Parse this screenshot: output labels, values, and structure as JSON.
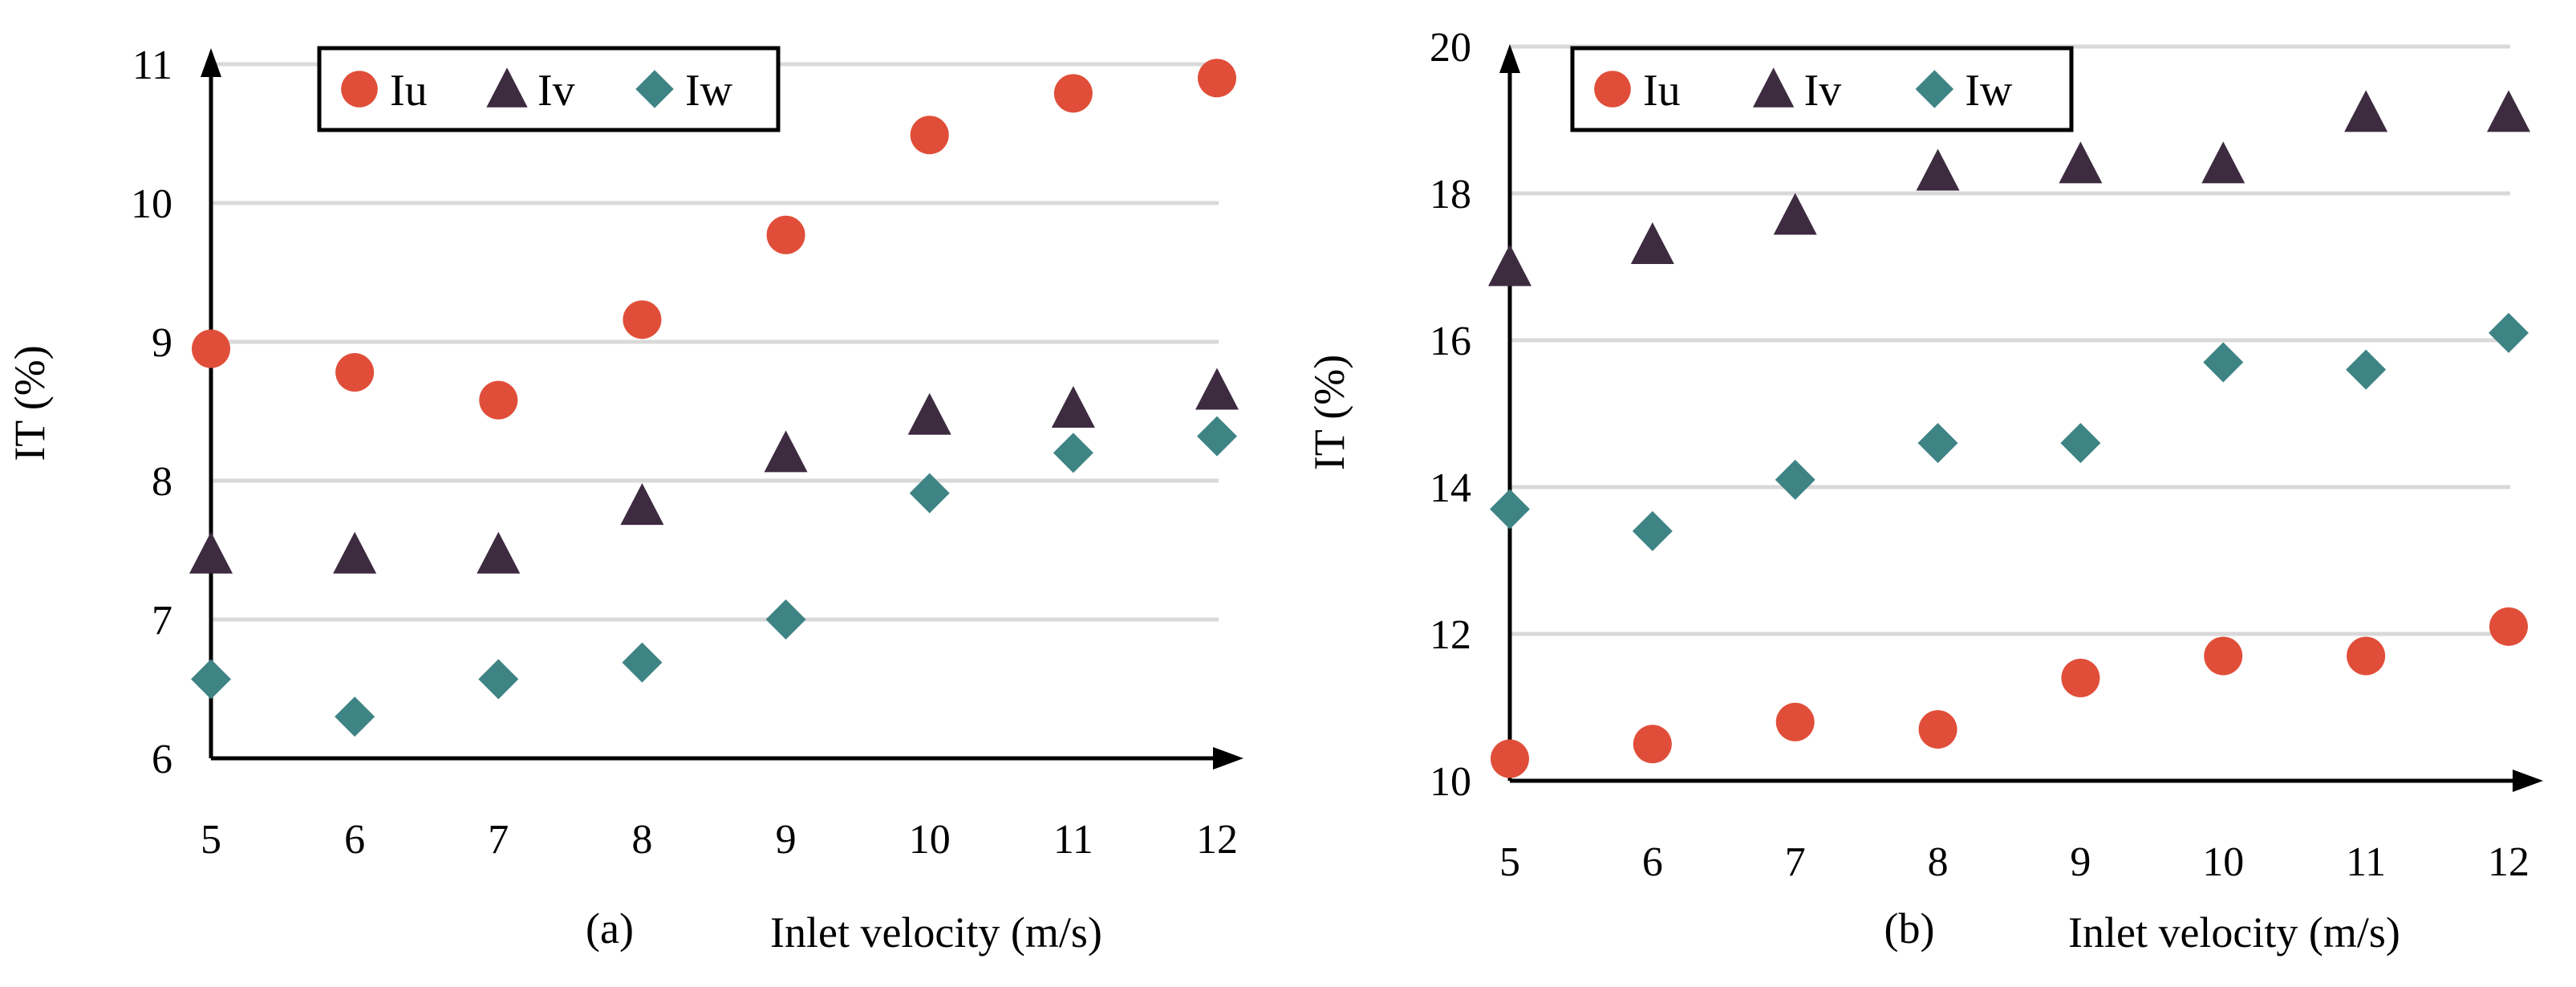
{
  "colors": {
    "Iu": "#e04e39",
    "Iv": "#3d2b40",
    "Iw": "#3f8485"
  },
  "chart_data": [
    {
      "type": "scatter",
      "panel_label": "(a)",
      "xlabel": "Inlet velocity (m/s)",
      "ylabel": "IT (%)",
      "x": [
        5,
        6,
        7,
        8,
        9,
        10,
        11,
        12
      ],
      "xlim": [
        5,
        12
      ],
      "ylim": [
        6,
        11
      ],
      "yticks": [
        6,
        7,
        8,
        9,
        10,
        11
      ],
      "grid": true,
      "legend_position": "top-left",
      "series": [
        {
          "name": "Iu",
          "marker": "circle",
          "values": [
            8.95,
            8.78,
            8.58,
            9.16,
            9.77,
            10.49,
            10.79,
            10.9
          ]
        },
        {
          "name": "Iv",
          "marker": "triangle",
          "values": [
            7.47,
            7.47,
            7.47,
            7.82,
            8.2,
            8.47,
            8.52,
            8.65
          ]
        },
        {
          "name": "Iw",
          "marker": "diamond",
          "values": [
            6.57,
            6.3,
            6.57,
            6.69,
            7.0,
            7.91,
            8.2,
            8.32
          ]
        }
      ]
    },
    {
      "type": "scatter",
      "panel_label": "(b)",
      "xlabel": "Inlet velocity (m/s)",
      "ylabel": "IT (%)",
      "x": [
        5,
        6,
        7,
        8,
        9,
        10,
        11,
        12
      ],
      "xlim": [
        5,
        12
      ],
      "ylim": [
        10,
        20
      ],
      "yticks": [
        10,
        12,
        14,
        16,
        18,
        20
      ],
      "grid": true,
      "legend_position": "top-left",
      "series": [
        {
          "name": "Iu",
          "marker": "circle",
          "values": [
            10.3,
            10.5,
            10.8,
            10.7,
            11.4,
            11.7,
            11.7,
            12.1
          ]
        },
        {
          "name": "Iv",
          "marker": "triangle",
          "values": [
            17.0,
            17.3,
            17.7,
            18.3,
            18.4,
            18.4,
            19.1,
            19.1
          ]
        },
        {
          "name": "Iw",
          "marker": "diamond",
          "values": [
            13.7,
            13.4,
            14.1,
            14.6,
            14.6,
            15.7,
            15.6,
            16.1
          ]
        }
      ]
    }
  ]
}
